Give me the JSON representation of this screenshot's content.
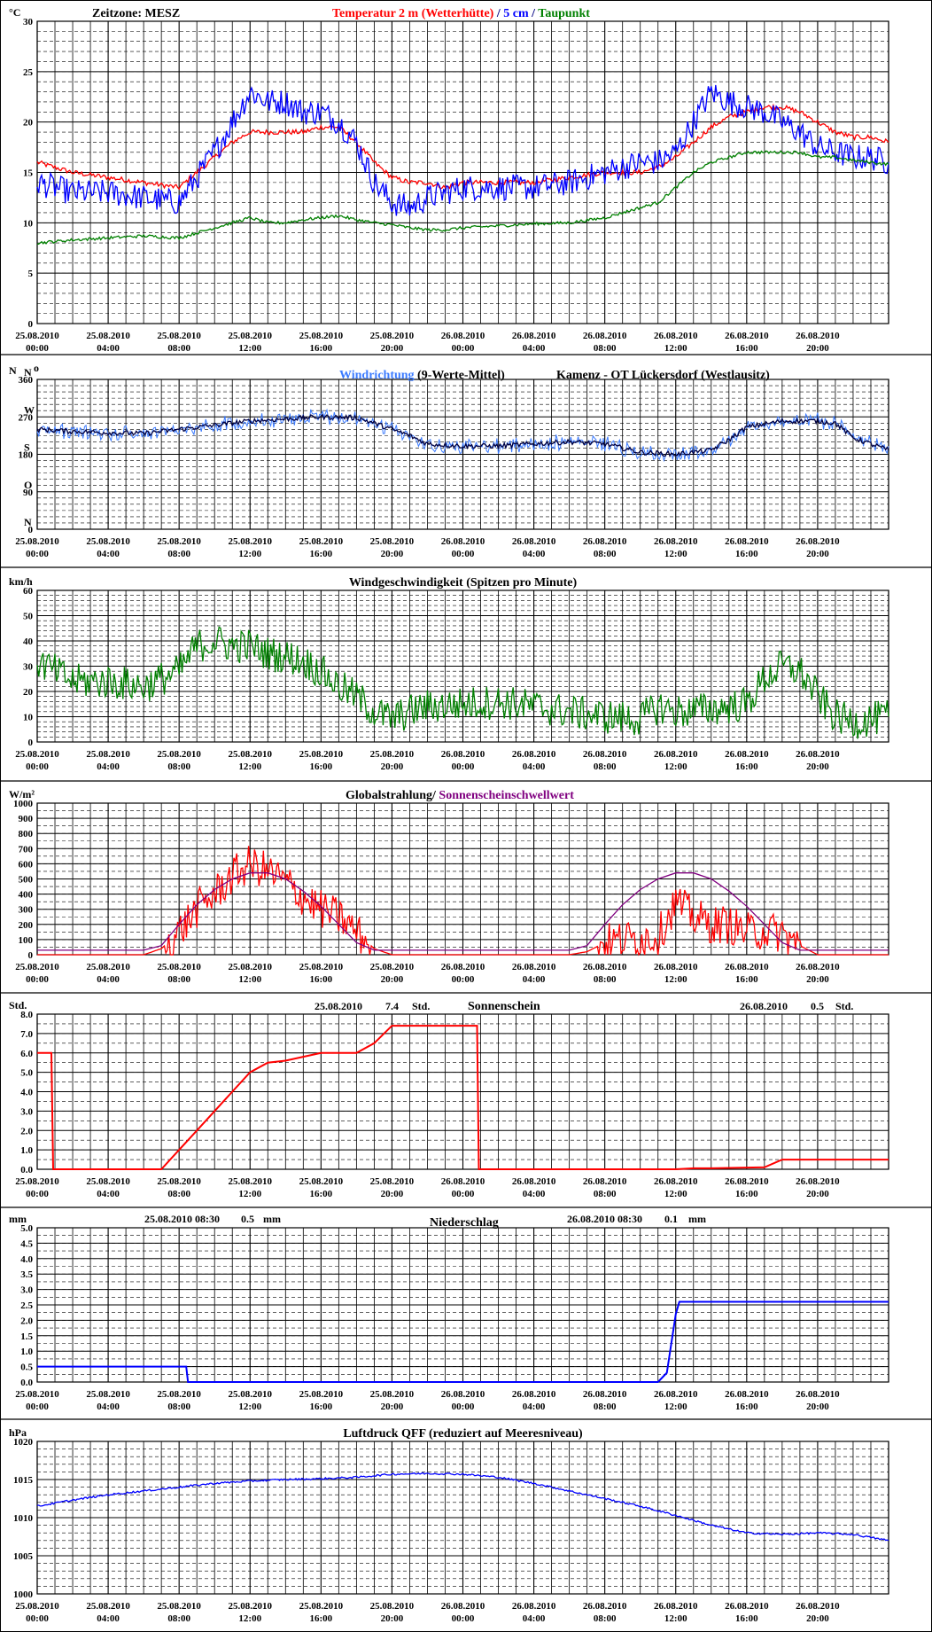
{
  "colors": {
    "red": "#ff0000",
    "blue": "#0000ff",
    "lightblue": "#3b7bff",
    "green": "#008000",
    "purple": "#800080",
    "navy": "#000040",
    "black": "#000000"
  },
  "x_tick_dates": [
    "25.08.2010",
    "25.08.2010",
    "25.08.2010",
    "25.08.2010",
    "25.08.2010",
    "25.08.2010",
    "26.08.2010",
    "26.08.2010",
    "26.08.2010",
    "26.08.2010",
    "26.08.2010",
    "26.08.2010"
  ],
  "x_tick_times": [
    "00:00",
    "04:00",
    "08:00",
    "12:00",
    "16:00",
    "20:00",
    "00:00",
    "04:00",
    "08:00",
    "12:00",
    "16:00",
    "20:00"
  ],
  "panels": {
    "temperature": {
      "unit": "°C",
      "zone": "Zeitzone: MESZ",
      "title_parts": [
        {
          "text": "Temperatur 2 m (Wetterhütte)",
          "color": "#ff0000"
        },
        {
          "text": "  /  ",
          "color": "#000080"
        },
        {
          "text": "5 cm",
          "color": "#0000ff"
        },
        {
          "text": " / ",
          "color": "#000080"
        },
        {
          "text": "Taupunkt",
          "color": "#008000"
        }
      ],
      "y_labels": [
        "30",
        "25",
        "20",
        "15",
        "10",
        "5",
        "0"
      ]
    },
    "winddir": {
      "unit": "N",
      "title_parts": [
        {
          "text": "Windrichtung",
          "color": "#3b7bff"
        },
        {
          "text": " (9-Werte-Mittel)",
          "color": "#000000"
        }
      ],
      "station": "Kamenz - OT Lückersdorf (Westlausitz)",
      "y_labels": [
        "360",
        "270",
        "180",
        "90",
        "0"
      ],
      "compass": [
        "N",
        "W",
        "S",
        "O",
        "N"
      ]
    },
    "windspeed": {
      "unit": "km/h",
      "title": "Windgeschwindigkeit (Spitzen pro Minute)",
      "y_labels": [
        "60",
        "50",
        "40",
        "30",
        "20",
        "10",
        "0"
      ]
    },
    "radiation": {
      "unit": "W/m²",
      "title_parts": [
        {
          "text": "Globalstrahlung/ ",
          "color": "#000000"
        },
        {
          "text": "Sonnenscheinschwellwert",
          "color": "#800080"
        }
      ],
      "y_labels": [
        "1000",
        "900",
        "800",
        "700",
        "600",
        "500",
        "400",
        "300",
        "200",
        "100",
        "0"
      ]
    },
    "sunshine": {
      "unit": "Std.",
      "title": "Sonnenschein",
      "day1_date": "25.08.2010",
      "day1_value": "7.4",
      "day1_unit": "Std.",
      "day2_date": "26.08.2010",
      "day2_value": "0.5",
      "day2_unit": "Std.",
      "y_labels": [
        "8.0",
        "7.0",
        "6.0",
        "5.0",
        "4.0",
        "3.0",
        "2.0",
        "1.0",
        "0.0"
      ]
    },
    "precip": {
      "unit": "mm",
      "title": "Niederschlag",
      "day1_date": "25.08.2010 08:30",
      "day1_value": "0.5",
      "day1_unit": "mm",
      "day2_date": "26.08.2010 08:30",
      "day2_value": "0.1",
      "day2_unit": "mm",
      "y_labels": [
        "5.0",
        "4.5",
        "4.0",
        "3.5",
        "3.0",
        "2.5",
        "2.0",
        "1.5",
        "1.0",
        "0.5",
        "0.0"
      ]
    },
    "pressure": {
      "unit": "hPa",
      "title": "Luftdruck QFF (reduziert auf Meeresniveau)",
      "y_labels": [
        "1020",
        "1015",
        "1010",
        "1005",
        "1000"
      ]
    }
  },
  "chart_data": [
    {
      "type": "line",
      "title": "Temperatur 2 m (Wetterhütte) / 5 cm / Taupunkt",
      "ylabel": "°C",
      "ylim": [
        0,
        30
      ],
      "x_unit": "hours since 25.08.2010 00:00",
      "x": [
        0,
        2,
        4,
        6,
        8,
        9,
        10,
        11,
        12,
        13,
        14,
        15,
        16,
        17,
        18,
        19,
        20,
        21,
        22,
        23,
        24,
        26,
        28,
        30,
        32,
        34,
        35,
        36,
        37,
        38,
        39,
        40,
        41,
        42,
        43,
        44,
        45,
        46,
        47,
        48
      ],
      "series": [
        {
          "name": "Temperatur 2 m",
          "color": "#ff0000",
          "values": [
            16,
            15,
            14.5,
            14,
            13.5,
            15,
            16.5,
            18,
            19,
            19,
            19,
            19,
            19.5,
            19.5,
            18,
            16,
            14.5,
            14,
            14,
            13.5,
            14,
            14,
            14,
            14.5,
            15,
            15,
            15.5,
            16.5,
            18,
            19.5,
            20.5,
            21,
            21.5,
            21.5,
            21,
            20,
            19,
            18.5,
            18.5,
            18
          ]
        },
        {
          "name": "5 cm",
          "color": "#0000ff",
          "values": [
            14,
            13,
            13,
            12.5,
            12,
            14.5,
            17,
            20,
            23,
            22,
            22,
            21,
            21,
            20,
            18,
            14,
            12,
            11.5,
            12.5,
            13,
            13.5,
            13.5,
            13.5,
            14,
            15,
            16,
            16,
            17,
            20,
            23,
            22,
            21.5,
            21,
            20,
            19,
            17.5,
            17,
            16.5,
            16.5,
            16
          ]
        },
        {
          "name": "Taupunkt",
          "color": "#008000",
          "values": [
            8,
            8.3,
            8.5,
            8.7,
            8.5,
            9,
            9.5,
            10,
            10.5,
            10,
            10,
            10.3,
            10.5,
            10.7,
            10.3,
            10,
            9.8,
            9.5,
            9.3,
            9.3,
            9.5,
            9.7,
            9.9,
            10,
            10.5,
            11.5,
            12,
            13.5,
            15,
            16,
            16.5,
            17,
            17,
            17,
            17,
            16.5,
            16.5,
            16.2,
            16,
            15.8
          ]
        }
      ]
    },
    {
      "type": "line",
      "title": "Windrichtung (9-Werte-Mittel)",
      "ylabel": "N",
      "ylim": [
        0,
        360
      ],
      "x_unit": "hours since 25.08.2010 00:00",
      "x": [
        0,
        2,
        4,
        6,
        8,
        10,
        12,
        14,
        16,
        18,
        19,
        20,
        21,
        22,
        24,
        26,
        28,
        30,
        32,
        34,
        36,
        38,
        39,
        40,
        42,
        44,
        45,
        46,
        47,
        48
      ],
      "series": [
        {
          "name": "Windrichtung",
          "color": "#000040",
          "values": [
            240,
            235,
            232,
            230,
            240,
            250,
            260,
            265,
            270,
            268,
            255,
            240,
            225,
            205,
            200,
            200,
            205,
            210,
            205,
            185,
            180,
            190,
            215,
            245,
            260,
            260,
            255,
            220,
            205,
            190
          ]
        }
      ]
    },
    {
      "type": "line",
      "title": "Windgeschwindigkeit (Spitzen pro Minute)",
      "ylabel": "km/h",
      "ylim": [
        0,
        60
      ],
      "x_unit": "hours since 25.08.2010 00:00",
      "x": [
        0,
        2,
        4,
        6,
        8,
        9,
        10,
        11,
        12,
        13,
        14,
        15,
        16,
        17,
        18,
        19,
        20,
        21,
        22,
        24,
        26,
        28,
        30,
        32,
        34,
        35,
        36,
        38,
        40,
        41,
        42,
        43,
        44,
        45,
        46,
        47,
        48
      ],
      "series": [
        {
          "name": "Windgeschwindigkeit",
          "color": "#008000",
          "values": [
            32,
            24,
            24,
            22,
            28,
            38,
            40,
            38,
            38,
            35,
            34,
            32,
            28,
            22,
            18,
            12,
            9,
            12,
            14,
            15,
            16,
            14,
            12,
            10,
            9,
            14,
            12,
            13,
            15,
            25,
            30,
            28,
            18,
            10,
            8,
            9,
            10
          ]
        }
      ]
    },
    {
      "type": "line",
      "title": "Globalstrahlung/ Sonnenscheinschwellwert",
      "ylabel": "W/m²",
      "ylim": [
        0,
        1000
      ],
      "x_unit": "hours since 25.08.2010 00:00",
      "x": [
        0,
        6,
        7,
        8,
        9,
        10,
        11,
        12,
        13,
        14,
        15,
        16,
        17,
        18,
        19,
        20,
        30,
        31,
        32,
        33,
        34,
        35,
        36,
        37,
        38,
        39,
        40,
        41,
        42,
        43,
        44,
        48
      ],
      "series": [
        {
          "name": "Globalstrahlung",
          "color": "#ff0000",
          "values": [
            0,
            0,
            40,
            150,
            300,
            400,
            520,
            600,
            550,
            480,
            380,
            300,
            250,
            150,
            40,
            0,
            0,
            20,
            80,
            100,
            110,
            120,
            350,
            250,
            200,
            200,
            150,
            160,
            140,
            60,
            0,
            0
          ]
        },
        {
          "name": "Sonnenscheinschwellwert",
          "color": "#800080",
          "values": [
            30,
            30,
            60,
            200,
            330,
            430,
            500,
            540,
            540,
            500,
            420,
            320,
            200,
            80,
            30,
            30,
            30,
            60,
            200,
            330,
            430,
            500,
            540,
            540,
            500,
            420,
            320,
            200,
            80,
            30,
            30,
            30
          ]
        }
      ]
    },
    {
      "type": "line",
      "title": "Sonnenschein",
      "ylabel": "Std.",
      "ylim": [
        0,
        8
      ],
      "x_unit": "hours since 25.08.2010 00:00",
      "x": [
        0,
        0.8,
        0.9,
        6.9,
        7,
        8,
        9,
        10,
        11,
        12,
        13,
        14,
        15,
        16,
        17,
        18,
        19,
        20,
        24.8,
        24.9,
        36,
        37,
        38,
        41,
        42,
        48
      ],
      "series": [
        {
          "name": "Sonnenschein",
          "color": "#ff0000",
          "values": [
            6,
            6,
            0,
            0,
            0,
            1,
            2,
            3,
            4,
            5,
            5.5,
            5.6,
            5.8,
            6,
            6,
            6,
            6.5,
            7.4,
            7.4,
            0,
            0,
            0.05,
            0.05,
            0.1,
            0.5,
            0.5
          ]
        }
      ]
    },
    {
      "type": "line",
      "title": "Niederschlag",
      "ylabel": "mm",
      "ylim": [
        0,
        5
      ],
      "x_unit": "hours since 25.08.2010 00:00",
      "x": [
        0,
        8.4,
        8.5,
        35,
        35.5,
        36,
        36.2,
        48
      ],
      "series": [
        {
          "name": "Niederschlag",
          "color": "#0000ff",
          "values": [
            0.5,
            0.5,
            0,
            0,
            0.3,
            2.2,
            2.6,
            2.6
          ]
        }
      ]
    },
    {
      "type": "line",
      "title": "Luftdruck QFF (reduziert auf Meeresniveau)",
      "ylabel": "hPa",
      "ylim": [
        1000,
        1020
      ],
      "x_unit": "hours since 25.08.2010 00:00",
      "x": [
        0,
        2,
        4,
        6,
        8,
        10,
        12,
        14,
        16,
        18,
        20,
        22,
        24,
        26,
        28,
        30,
        32,
        34,
        36,
        38,
        40,
        42,
        44,
        46,
        48
      ],
      "series": [
        {
          "name": "Luftdruck QFF",
          "color": "#0000ff",
          "values": [
            1011.5,
            1012.3,
            1013,
            1013.5,
            1014,
            1014.5,
            1014.8,
            1015,
            1015.1,
            1015.3,
            1015.7,
            1015.8,
            1015.7,
            1015.3,
            1014.5,
            1013.5,
            1012.5,
            1011.5,
            1010.3,
            1009,
            1008,
            1007.8,
            1008,
            1007.8,
            1007
          ]
        }
      ]
    }
  ]
}
